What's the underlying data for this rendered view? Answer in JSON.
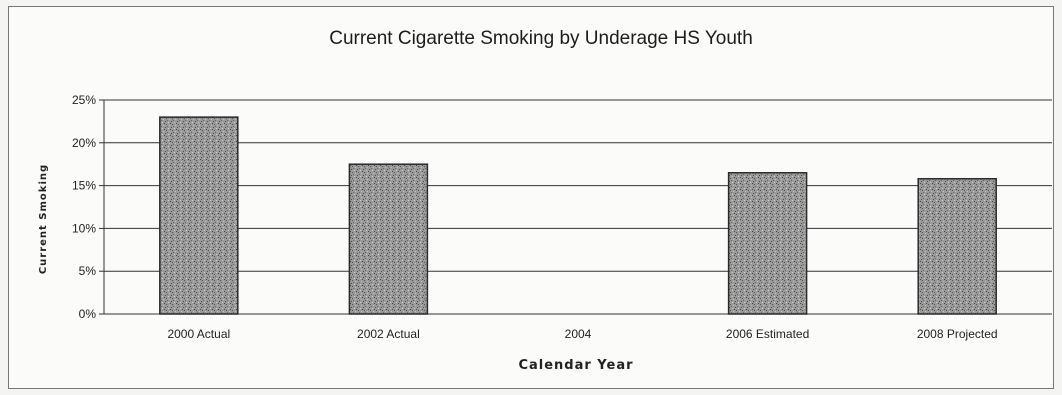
{
  "chart_data": {
    "type": "bar",
    "title": "Current Cigarette Smoking by Underage HS Youth",
    "xlabel": "Calendar Year",
    "ylabel": "Current Smoking",
    "categories": [
      "2000 Actual",
      "2002 Actual",
      "2004",
      "2006 Estimated",
      "2008 Projected"
    ],
    "values": [
      23,
      17.5,
      null,
      16.5,
      15.8
    ],
    "ylim": [
      0,
      25
    ],
    "yticks": [
      0,
      5,
      10,
      15,
      20,
      25
    ],
    "ytick_labels": [
      "0%",
      "5%",
      "10%",
      "15%",
      "20%",
      "25%"
    ],
    "grid": "horizontal",
    "legend": "none",
    "colors": {
      "bar_fill": "#8e8e8e",
      "bar_stroke": "#2a2a2a",
      "gridline": "#333333",
      "background": "#fbfbf9"
    }
  }
}
